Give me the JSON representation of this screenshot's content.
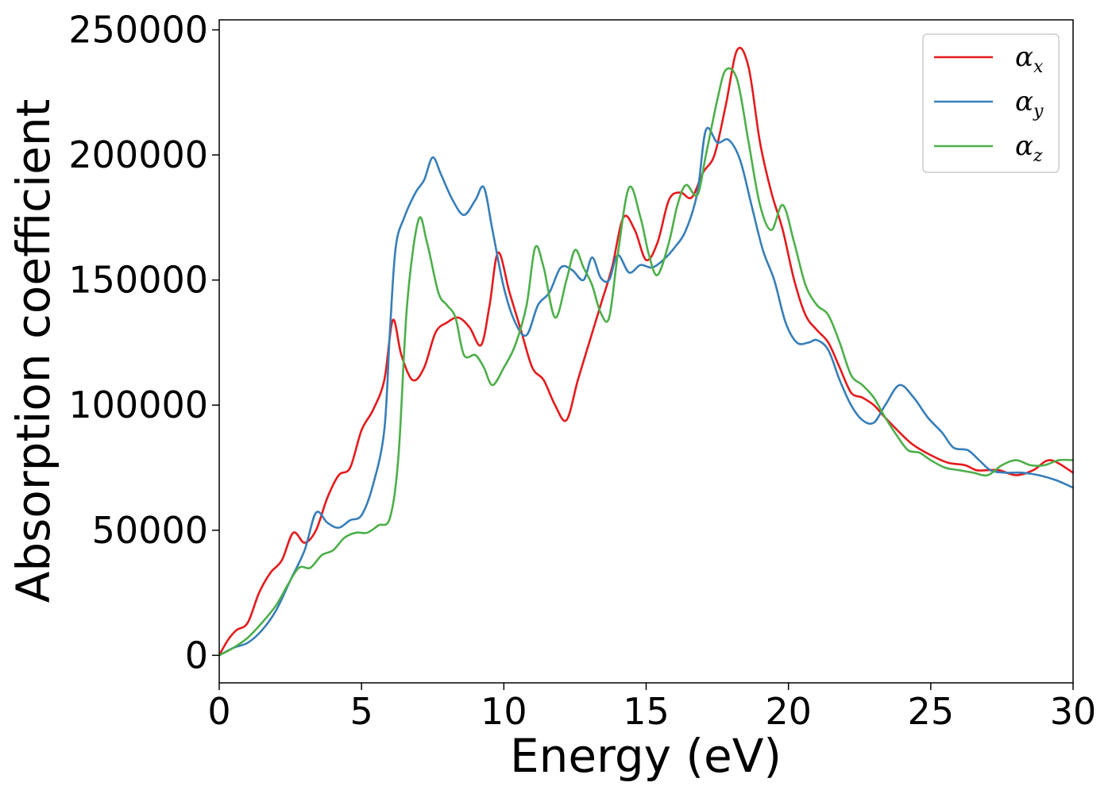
{
  "chart_data": {
    "type": "line",
    "xlabel": "Energy (eV)",
    "ylabel": "Absorption coefficient",
    "xlim": [
      0,
      30
    ],
    "ylim": [
      -11000,
      254000
    ],
    "xticks": [
      0,
      5,
      10,
      15,
      20,
      25,
      30
    ],
    "yticks": [
      0,
      50000,
      100000,
      150000,
      200000,
      250000
    ],
    "grid": false,
    "legend": "top-right",
    "series": [
      {
        "name": "αx",
        "symbol": "α",
        "subscript": "x",
        "color": "#e41a1c",
        "points": [
          [
            0,
            0
          ],
          [
            0.3,
            6000
          ],
          [
            0.6,
            10000
          ],
          [
            1.0,
            13000
          ],
          [
            1.4,
            25000
          ],
          [
            1.8,
            33000
          ],
          [
            2.2,
            38000
          ],
          [
            2.6,
            49000
          ],
          [
            3.0,
            45000
          ],
          [
            3.4,
            50000
          ],
          [
            3.8,
            63000
          ],
          [
            4.2,
            72000
          ],
          [
            4.6,
            75000
          ],
          [
            5.0,
            90000
          ],
          [
            5.4,
            98000
          ],
          [
            5.8,
            110000
          ],
          [
            6.1,
            134000
          ],
          [
            6.4,
            120000
          ],
          [
            6.8,
            110000
          ],
          [
            7.2,
            115000
          ],
          [
            7.6,
            129000
          ],
          [
            8.0,
            133000
          ],
          [
            8.4,
            135000
          ],
          [
            8.8,
            131000
          ],
          [
            9.2,
            124000
          ],
          [
            9.5,
            140000
          ],
          [
            9.8,
            161000
          ],
          [
            10.2,
            145000
          ],
          [
            10.6,
            130000
          ],
          [
            11.0,
            115000
          ],
          [
            11.4,
            110000
          ],
          [
            11.8,
            100000
          ],
          [
            12.2,
            94000
          ],
          [
            12.6,
            110000
          ],
          [
            13.0,
            125000
          ],
          [
            13.4,
            140000
          ],
          [
            13.8,
            155000
          ],
          [
            14.2,
            175000
          ],
          [
            14.6,
            170000
          ],
          [
            15.0,
            158000
          ],
          [
            15.4,
            165000
          ],
          [
            15.8,
            182000
          ],
          [
            16.2,
            185000
          ],
          [
            16.6,
            183000
          ],
          [
            17.0,
            193000
          ],
          [
            17.4,
            200000
          ],
          [
            17.8,
            220000
          ],
          [
            18.2,
            242000
          ],
          [
            18.6,
            235000
          ],
          [
            19.0,
            205000
          ],
          [
            19.4,
            185000
          ],
          [
            19.8,
            170000
          ],
          [
            20.2,
            150000
          ],
          [
            20.6,
            136000
          ],
          [
            21.0,
            130000
          ],
          [
            21.4,
            125000
          ],
          [
            21.8,
            115000
          ],
          [
            22.2,
            105000
          ],
          [
            22.6,
            103000
          ],
          [
            23.0,
            100000
          ],
          [
            23.4,
            95000
          ],
          [
            24.0,
            88000
          ],
          [
            24.4,
            84000
          ],
          [
            25.0,
            80000
          ],
          [
            25.6,
            77000
          ],
          [
            26.2,
            76000
          ],
          [
            26.6,
            74000
          ],
          [
            27.0,
            74000
          ],
          [
            27.4,
            74000
          ],
          [
            28.0,
            72000
          ],
          [
            28.6,
            74000
          ],
          [
            29.2,
            78000
          ],
          [
            30.0,
            73000
          ]
        ]
      },
      {
        "name": "αy",
        "symbol": "α",
        "subscript": "y",
        "color": "#377eb8",
        "points": [
          [
            0,
            0
          ],
          [
            0.5,
            3000
          ],
          [
            1.0,
            5000
          ],
          [
            1.5,
            10000
          ],
          [
            2.0,
            18000
          ],
          [
            2.5,
            30000
          ],
          [
            3.0,
            42000
          ],
          [
            3.4,
            57000
          ],
          [
            3.8,
            53000
          ],
          [
            4.2,
            51000
          ],
          [
            4.6,
            54000
          ],
          [
            5.0,
            56000
          ],
          [
            5.4,
            68000
          ],
          [
            5.8,
            90000
          ],
          [
            6.0,
            130000
          ],
          [
            6.2,
            163000
          ],
          [
            6.5,
            175000
          ],
          [
            6.9,
            185000
          ],
          [
            7.2,
            190000
          ],
          [
            7.5,
            199000
          ],
          [
            7.8,
            192000
          ],
          [
            8.2,
            182000
          ],
          [
            8.6,
            176000
          ],
          [
            9.0,
            182000
          ],
          [
            9.3,
            187000
          ],
          [
            9.6,
            170000
          ],
          [
            10.0,
            147000
          ],
          [
            10.4,
            133000
          ],
          [
            10.8,
            128000
          ],
          [
            11.2,
            140000
          ],
          [
            11.6,
            145000
          ],
          [
            12.0,
            155000
          ],
          [
            12.4,
            154000
          ],
          [
            12.8,
            150000
          ],
          [
            13.1,
            159000
          ],
          [
            13.4,
            151000
          ],
          [
            13.7,
            150000
          ],
          [
            14.0,
            160000
          ],
          [
            14.4,
            153000
          ],
          [
            14.8,
            156000
          ],
          [
            15.2,
            155000
          ],
          [
            15.6,
            158000
          ],
          [
            16.0,
            163000
          ],
          [
            16.4,
            170000
          ],
          [
            16.8,
            185000
          ],
          [
            17.1,
            210000
          ],
          [
            17.5,
            205000
          ],
          [
            17.9,
            206000
          ],
          [
            18.3,
            198000
          ],
          [
            18.7,
            180000
          ],
          [
            19.1,
            162000
          ],
          [
            19.5,
            150000
          ],
          [
            19.9,
            133000
          ],
          [
            20.3,
            125000
          ],
          [
            20.7,
            125000
          ],
          [
            21.0,
            126000
          ],
          [
            21.4,
            122000
          ],
          [
            21.8,
            110000
          ],
          [
            22.2,
            100000
          ],
          [
            22.6,
            94000
          ],
          [
            23.0,
            93000
          ],
          [
            23.4,
            100000
          ],
          [
            23.9,
            108000
          ],
          [
            24.4,
            103000
          ],
          [
            24.9,
            95000
          ],
          [
            25.4,
            89000
          ],
          [
            25.8,
            83000
          ],
          [
            26.3,
            82000
          ],
          [
            26.7,
            78000
          ],
          [
            27.1,
            74000
          ],
          [
            27.6,
            73000
          ],
          [
            28.2,
            73000
          ],
          [
            28.8,
            72000
          ],
          [
            29.4,
            70000
          ],
          [
            30.0,
            67000
          ]
        ]
      },
      {
        "name": "αz",
        "symbol": "α",
        "subscript": "z",
        "color": "#4daf4a",
        "points": [
          [
            0,
            0
          ],
          [
            0.5,
            3000
          ],
          [
            1.0,
            7000
          ],
          [
            1.5,
            13000
          ],
          [
            2.0,
            20000
          ],
          [
            2.4,
            28000
          ],
          [
            2.8,
            35000
          ],
          [
            3.2,
            35000
          ],
          [
            3.6,
            40000
          ],
          [
            4.0,
            42000
          ],
          [
            4.4,
            47000
          ],
          [
            4.8,
            49000
          ],
          [
            5.2,
            49000
          ],
          [
            5.6,
            52000
          ],
          [
            6.0,
            55000
          ],
          [
            6.3,
            80000
          ],
          [
            6.6,
            140000
          ],
          [
            7.0,
            174000
          ],
          [
            7.3,
            165000
          ],
          [
            7.7,
            145000
          ],
          [
            8.0,
            140000
          ],
          [
            8.3,
            135000
          ],
          [
            8.6,
            120000
          ],
          [
            9.0,
            120000
          ],
          [
            9.3,
            115000
          ],
          [
            9.6,
            108000
          ],
          [
            10.0,
            115000
          ],
          [
            10.4,
            124000
          ],
          [
            10.8,
            140000
          ],
          [
            11.1,
            163000
          ],
          [
            11.4,
            155000
          ],
          [
            11.8,
            135000
          ],
          [
            12.2,
            150000
          ],
          [
            12.5,
            162000
          ],
          [
            12.8,
            155000
          ],
          [
            13.1,
            148000
          ],
          [
            13.4,
            137000
          ],
          [
            13.7,
            135000
          ],
          [
            14.0,
            160000
          ],
          [
            14.4,
            187000
          ],
          [
            14.8,
            175000
          ],
          [
            15.1,
            160000
          ],
          [
            15.4,
            152000
          ],
          [
            15.8,
            165000
          ],
          [
            16.1,
            180000
          ],
          [
            16.4,
            188000
          ],
          [
            16.8,
            184000
          ],
          [
            17.1,
            200000
          ],
          [
            17.5,
            222000
          ],
          [
            17.8,
            234000
          ],
          [
            18.2,
            230000
          ],
          [
            18.6,
            205000
          ],
          [
            19.0,
            180000
          ],
          [
            19.4,
            170000
          ],
          [
            19.8,
            180000
          ],
          [
            20.2,
            165000
          ],
          [
            20.6,
            148000
          ],
          [
            21.0,
            140000
          ],
          [
            21.4,
            136000
          ],
          [
            21.8,
            125000
          ],
          [
            22.2,
            112000
          ],
          [
            22.6,
            108000
          ],
          [
            23.0,
            103000
          ],
          [
            23.4,
            95000
          ],
          [
            23.8,
            88000
          ],
          [
            24.2,
            82000
          ],
          [
            24.6,
            81000
          ],
          [
            25.0,
            78000
          ],
          [
            25.5,
            75000
          ],
          [
            26.0,
            74000
          ],
          [
            26.5,
            73000
          ],
          [
            27.0,
            72000
          ],
          [
            27.5,
            76000
          ],
          [
            28.0,
            78000
          ],
          [
            28.5,
            76000
          ],
          [
            29.0,
            76000
          ],
          [
            29.5,
            78000
          ],
          [
            30.0,
            78000
          ]
        ]
      }
    ]
  }
}
